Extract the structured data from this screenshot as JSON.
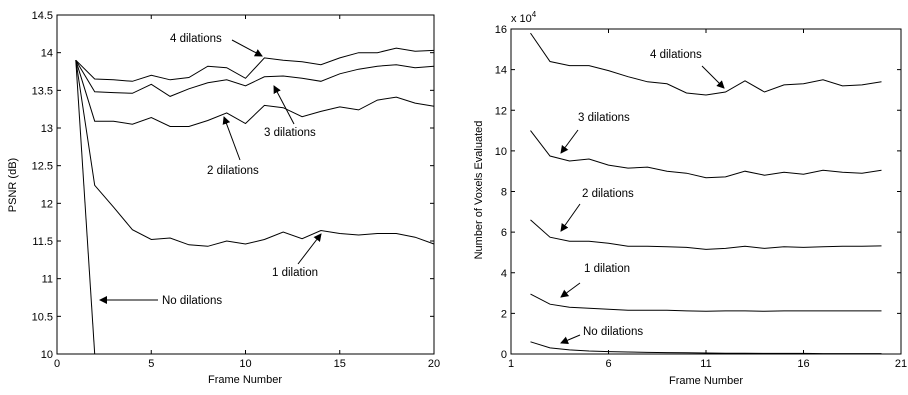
{
  "chart_data": [
    {
      "type": "line",
      "xlabel": "Frame Number",
      "ylabel": "PSNR (dB)",
      "xlim": [
        0,
        20
      ],
      "ylim": [
        10,
        14.5
      ],
      "xticks": [
        0,
        5,
        10,
        15,
        20
      ],
      "xtick_labels": [
        "0",
        "5",
        "10",
        "15",
        "20"
      ],
      "yticks": [
        10,
        10.5,
        11,
        11.5,
        12,
        12.5,
        13,
        13.5,
        14,
        14.5
      ],
      "ytick_labels": [
        "10",
        "10.5",
        "11",
        "11.5",
        "12",
        "12.5",
        "13",
        "13.5",
        "14",
        "14.5"
      ],
      "grid": false,
      "series": [
        {
          "name": "4 dilations",
          "x": [
            1,
            2,
            3,
            4,
            5,
            6,
            7,
            8,
            9,
            10,
            11,
            12,
            13,
            14,
            15,
            16,
            17,
            18,
            19,
            20
          ],
          "y": [
            13.9,
            13.65,
            13.64,
            13.62,
            13.7,
            13.64,
            13.67,
            13.82,
            13.8,
            13.66,
            13.93,
            13.9,
            13.88,
            13.84,
            13.93,
            14.0,
            14.0,
            14.06,
            14.02,
            14.03
          ]
        },
        {
          "name": "3 dilations",
          "x": [
            1,
            2,
            3,
            4,
            5,
            6,
            7,
            8,
            9,
            10,
            11,
            12,
            13,
            14,
            15,
            16,
            17,
            18,
            19,
            20
          ],
          "y": [
            13.9,
            13.48,
            13.47,
            13.46,
            13.58,
            13.42,
            13.52,
            13.6,
            13.64,
            13.56,
            13.68,
            13.69,
            13.66,
            13.62,
            13.72,
            13.78,
            13.82,
            13.84,
            13.8,
            13.82
          ]
        },
        {
          "name": "2 dilations",
          "x": [
            1,
            2,
            3,
            4,
            5,
            6,
            7,
            8,
            9,
            10,
            11,
            12,
            13,
            14,
            15,
            16,
            17,
            18,
            19,
            20
          ],
          "y": [
            13.9,
            13.09,
            13.09,
            13.05,
            13.14,
            13.02,
            13.02,
            13.1,
            13.2,
            13.06,
            13.3,
            13.27,
            13.15,
            13.22,
            13.28,
            13.24,
            13.37,
            13.41,
            13.33,
            13.29
          ]
        },
        {
          "name": "1 dilation",
          "x": [
            1,
            2,
            3,
            4,
            5,
            6,
            7,
            8,
            9,
            10,
            11,
            12,
            13,
            14,
            15,
            16,
            17,
            18,
            19,
            20
          ],
          "y": [
            13.9,
            12.24,
            11.95,
            11.65,
            11.52,
            11.54,
            11.45,
            11.43,
            11.5,
            11.46,
            11.52,
            11.62,
            11.53,
            11.64,
            11.6,
            11.58,
            11.6,
            11.6,
            11.55,
            11.46
          ]
        },
        {
          "name": "No dilations",
          "x": [
            1,
            2
          ],
          "y": [
            13.9,
            10.0
          ]
        }
      ],
      "annotations": [
        {
          "text": "4 dilations",
          "target": [
            11,
            13.93
          ]
        },
        {
          "text": "3 dilations",
          "target": [
            12,
            13.69
          ]
        },
        {
          "text": "2 dilations",
          "target": [
            9,
            13.2
          ]
        },
        {
          "text": "1 dilation",
          "target": [
            14,
            11.64
          ]
        },
        {
          "text": "No dilations",
          "target": [
            1.8,
            10.7
          ]
        }
      ]
    },
    {
      "type": "line",
      "xlabel": "Frame Number",
      "ylabel": "Number of Voxels Evaluated",
      "y_multiplier": "x 10",
      "y_multiplier_exp": "4",
      "xlim": [
        1,
        21
      ],
      "ylim": [
        0,
        16
      ],
      "xticks": [
        1,
        6,
        11,
        16,
        21
      ],
      "xtick_labels": [
        "1",
        "6",
        "11",
        "16",
        "21"
      ],
      "yticks": [
        0,
        2,
        4,
        6,
        8,
        10,
        12,
        14,
        16
      ],
      "ytick_labels": [
        "0",
        "2",
        "4",
        "6",
        "8",
        "10",
        "12",
        "14",
        "16"
      ],
      "grid": false,
      "series": [
        {
          "name": "4 dilations",
          "x": [
            2,
            3,
            4,
            5,
            6,
            7,
            8,
            9,
            10,
            11,
            12,
            13,
            14,
            15,
            16,
            17,
            18,
            19,
            20
          ],
          "y": [
            15.8,
            14.4,
            14.2,
            14.2,
            13.95,
            13.65,
            13.4,
            13.3,
            12.85,
            12.75,
            12.9,
            13.45,
            12.9,
            13.25,
            13.3,
            13.5,
            13.2,
            13.25,
            13.4
          ]
        },
        {
          "name": "3 dilations",
          "x": [
            2,
            3,
            4,
            5,
            6,
            7,
            8,
            9,
            10,
            11,
            12,
            13,
            14,
            15,
            16,
            17,
            18,
            19,
            20
          ],
          "y": [
            11.0,
            9.75,
            9.5,
            9.6,
            9.3,
            9.15,
            9.2,
            9.0,
            8.9,
            8.68,
            8.72,
            9.0,
            8.8,
            8.95,
            8.85,
            9.05,
            8.95,
            8.9,
            9.05
          ]
        },
        {
          "name": "2 dilations",
          "x": [
            2,
            3,
            4,
            5,
            6,
            7,
            8,
            9,
            10,
            11,
            12,
            13,
            14,
            15,
            16,
            17,
            18,
            19,
            20
          ],
          "y": [
            6.6,
            5.75,
            5.55,
            5.55,
            5.45,
            5.3,
            5.3,
            5.28,
            5.25,
            5.15,
            5.2,
            5.3,
            5.2,
            5.28,
            5.25,
            5.28,
            5.3,
            5.3,
            5.32
          ]
        },
        {
          "name": "1 dilation",
          "x": [
            2,
            3,
            4,
            5,
            6,
            7,
            8,
            9,
            10,
            11,
            12,
            13,
            14,
            15,
            16,
            17,
            18,
            19,
            20
          ],
          "y": [
            2.95,
            2.45,
            2.3,
            2.25,
            2.2,
            2.15,
            2.15,
            2.15,
            2.12,
            2.1,
            2.12,
            2.12,
            2.1,
            2.12,
            2.12,
            2.12,
            2.12,
            2.12,
            2.12
          ]
        },
        {
          "name": "No dilations",
          "x": [
            2,
            3,
            4,
            5,
            6,
            7,
            8,
            9,
            10,
            11,
            12,
            13,
            14,
            15,
            16,
            17,
            18,
            19,
            20
          ],
          "y": [
            0.6,
            0.3,
            0.2,
            0.15,
            0.12,
            0.1,
            0.08,
            0.07,
            0.06,
            0.05,
            0.04,
            0.04,
            0.03,
            0.03,
            0.03,
            0.02,
            0.02,
            0.02,
            0.02
          ]
        }
      ],
      "annotations": [
        {
          "text": "4 dilations",
          "target": [
            12,
            12.9
          ]
        },
        {
          "text": "3 dilations",
          "target": [
            3,
            9.75
          ]
        },
        {
          "text": "2 dilations",
          "target": [
            3,
            5.75
          ]
        },
        {
          "text": "1 dilation",
          "target": [
            3,
            2.45
          ]
        },
        {
          "text": "No dilations",
          "target": [
            3,
            0.3
          ]
        }
      ]
    }
  ]
}
